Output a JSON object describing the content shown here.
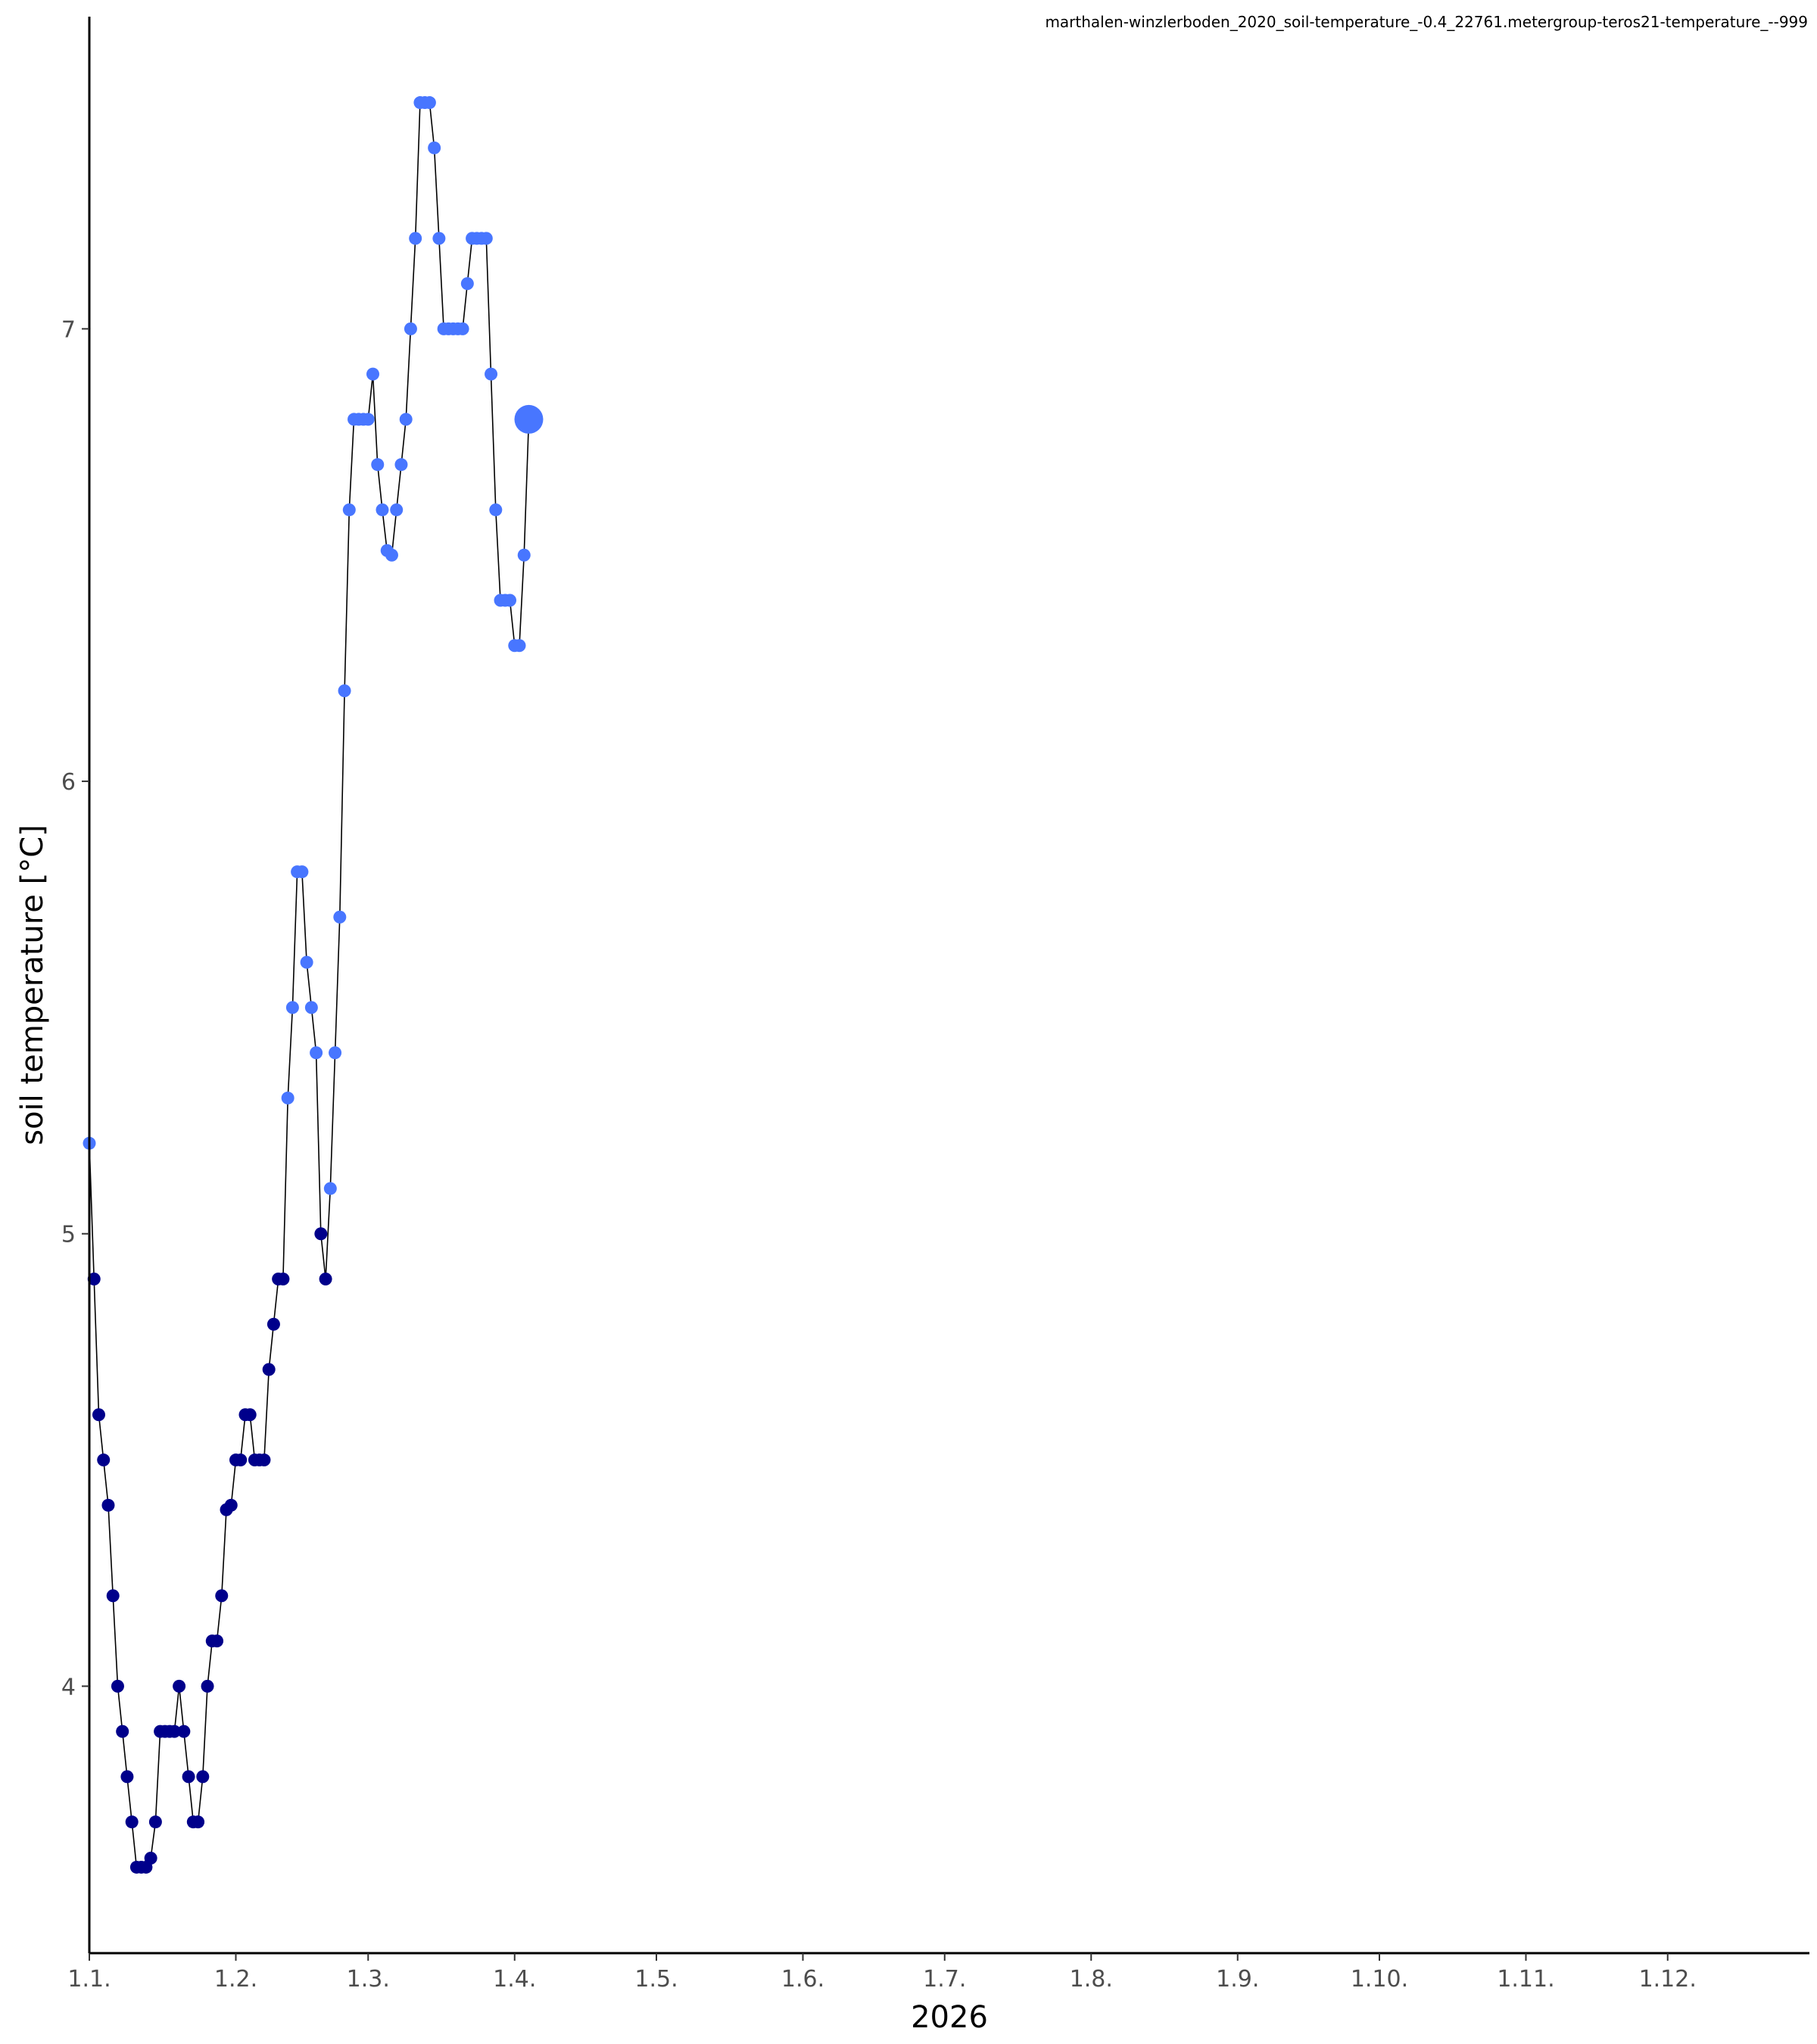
{
  "chart_data": {
    "type": "scatter",
    "title": "marthalen-winzlerboden_2020_soil-temperature_-0.4_22761.metergroup-teros21-temperature_--999",
    "xlabel": "2026",
    "ylabel": "soil temperature [°C]",
    "x_unit": "day of year 2026 (tick labels d.m.)",
    "xlim": [
      0,
      364
    ],
    "ylim": [
      3.41,
      7.69
    ],
    "x_tick_labels": [
      "1.1.",
      "1.2.",
      "1.3.",
      "1.4.",
      "1.5.",
      "1.6.",
      "1.7.",
      "1.8.",
      "1.9.",
      "1.10.",
      "1.11.",
      "1.12."
    ],
    "x_tick_values": [
      0,
      31,
      59,
      90,
      120,
      151,
      181,
      212,
      243,
      273,
      304,
      334
    ],
    "y_tick_labels": [
      "4",
      "5",
      "6",
      "7"
    ],
    "y_tick_values": [
      4,
      5,
      6,
      7
    ],
    "grid": false,
    "legend": "none",
    "colors": {
      "cold": "#00008b",
      "warm": "#4876ff",
      "line": "#000000"
    },
    "color_threshold": 5,
    "series": [
      {
        "x": [
          0,
          1,
          2,
          3,
          4,
          5,
          6,
          7,
          8,
          9,
          10,
          11,
          12,
          13,
          14,
          15,
          16,
          17,
          18,
          19,
          20,
          21,
          22,
          23,
          24,
          25,
          26,
          27,
          28,
          29,
          30,
          31,
          32,
          33,
          34,
          35,
          36,
          37,
          38,
          39,
          40,
          41,
          42,
          43,
          44,
          45,
          46,
          47,
          48,
          49,
          50,
          51,
          52,
          53,
          54,
          55,
          56,
          57,
          58,
          59,
          60,
          61,
          62,
          63,
          64,
          65,
          66,
          67,
          68,
          69,
          70,
          71,
          72,
          73,
          74,
          75,
          76,
          77,
          78,
          79,
          80,
          81,
          82,
          83,
          84,
          85,
          86,
          87,
          88,
          89,
          90,
          91,
          92,
          93
        ],
        "y": [
          5.2,
          4.9,
          4.6,
          4.5,
          4.4,
          4.2,
          4.0,
          3.9,
          3.8,
          3.7,
          3.6,
          3.6,
          3.6,
          3.62,
          3.7,
          3.9,
          3.9,
          3.9,
          3.9,
          4.0,
          3.9,
          3.8,
          3.7,
          3.7,
          3.8,
          4.0,
          4.1,
          4.1,
          4.2,
          4.39,
          4.4,
          4.5,
          4.5,
          4.6,
          4.6,
          4.5,
          4.5,
          4.5,
          4.7,
          4.8,
          4.9,
          4.9,
          5.3,
          5.5,
          5.8,
          5.8,
          5.6,
          5.5,
          5.4,
          5.0,
          4.9,
          5.1,
          5.4,
          5.7,
          6.2,
          6.6,
          6.8,
          6.8,
          6.8,
          6.8,
          6.9,
          6.7,
          6.6,
          6.51,
          6.5,
          6.6,
          6.7,
          6.8,
          7.0,
          7.2,
          7.5,
          7.5,
          7.5,
          7.4,
          7.2,
          7.0,
          7.0,
          7.0,
          7.0,
          7.0,
          7.1,
          7.2,
          7.2,
          7.2,
          7.2,
          6.9,
          6.6,
          6.4,
          6.4,
          6.4,
          6.3,
          6.3,
          6.5,
          6.8
        ]
      }
    ]
  }
}
